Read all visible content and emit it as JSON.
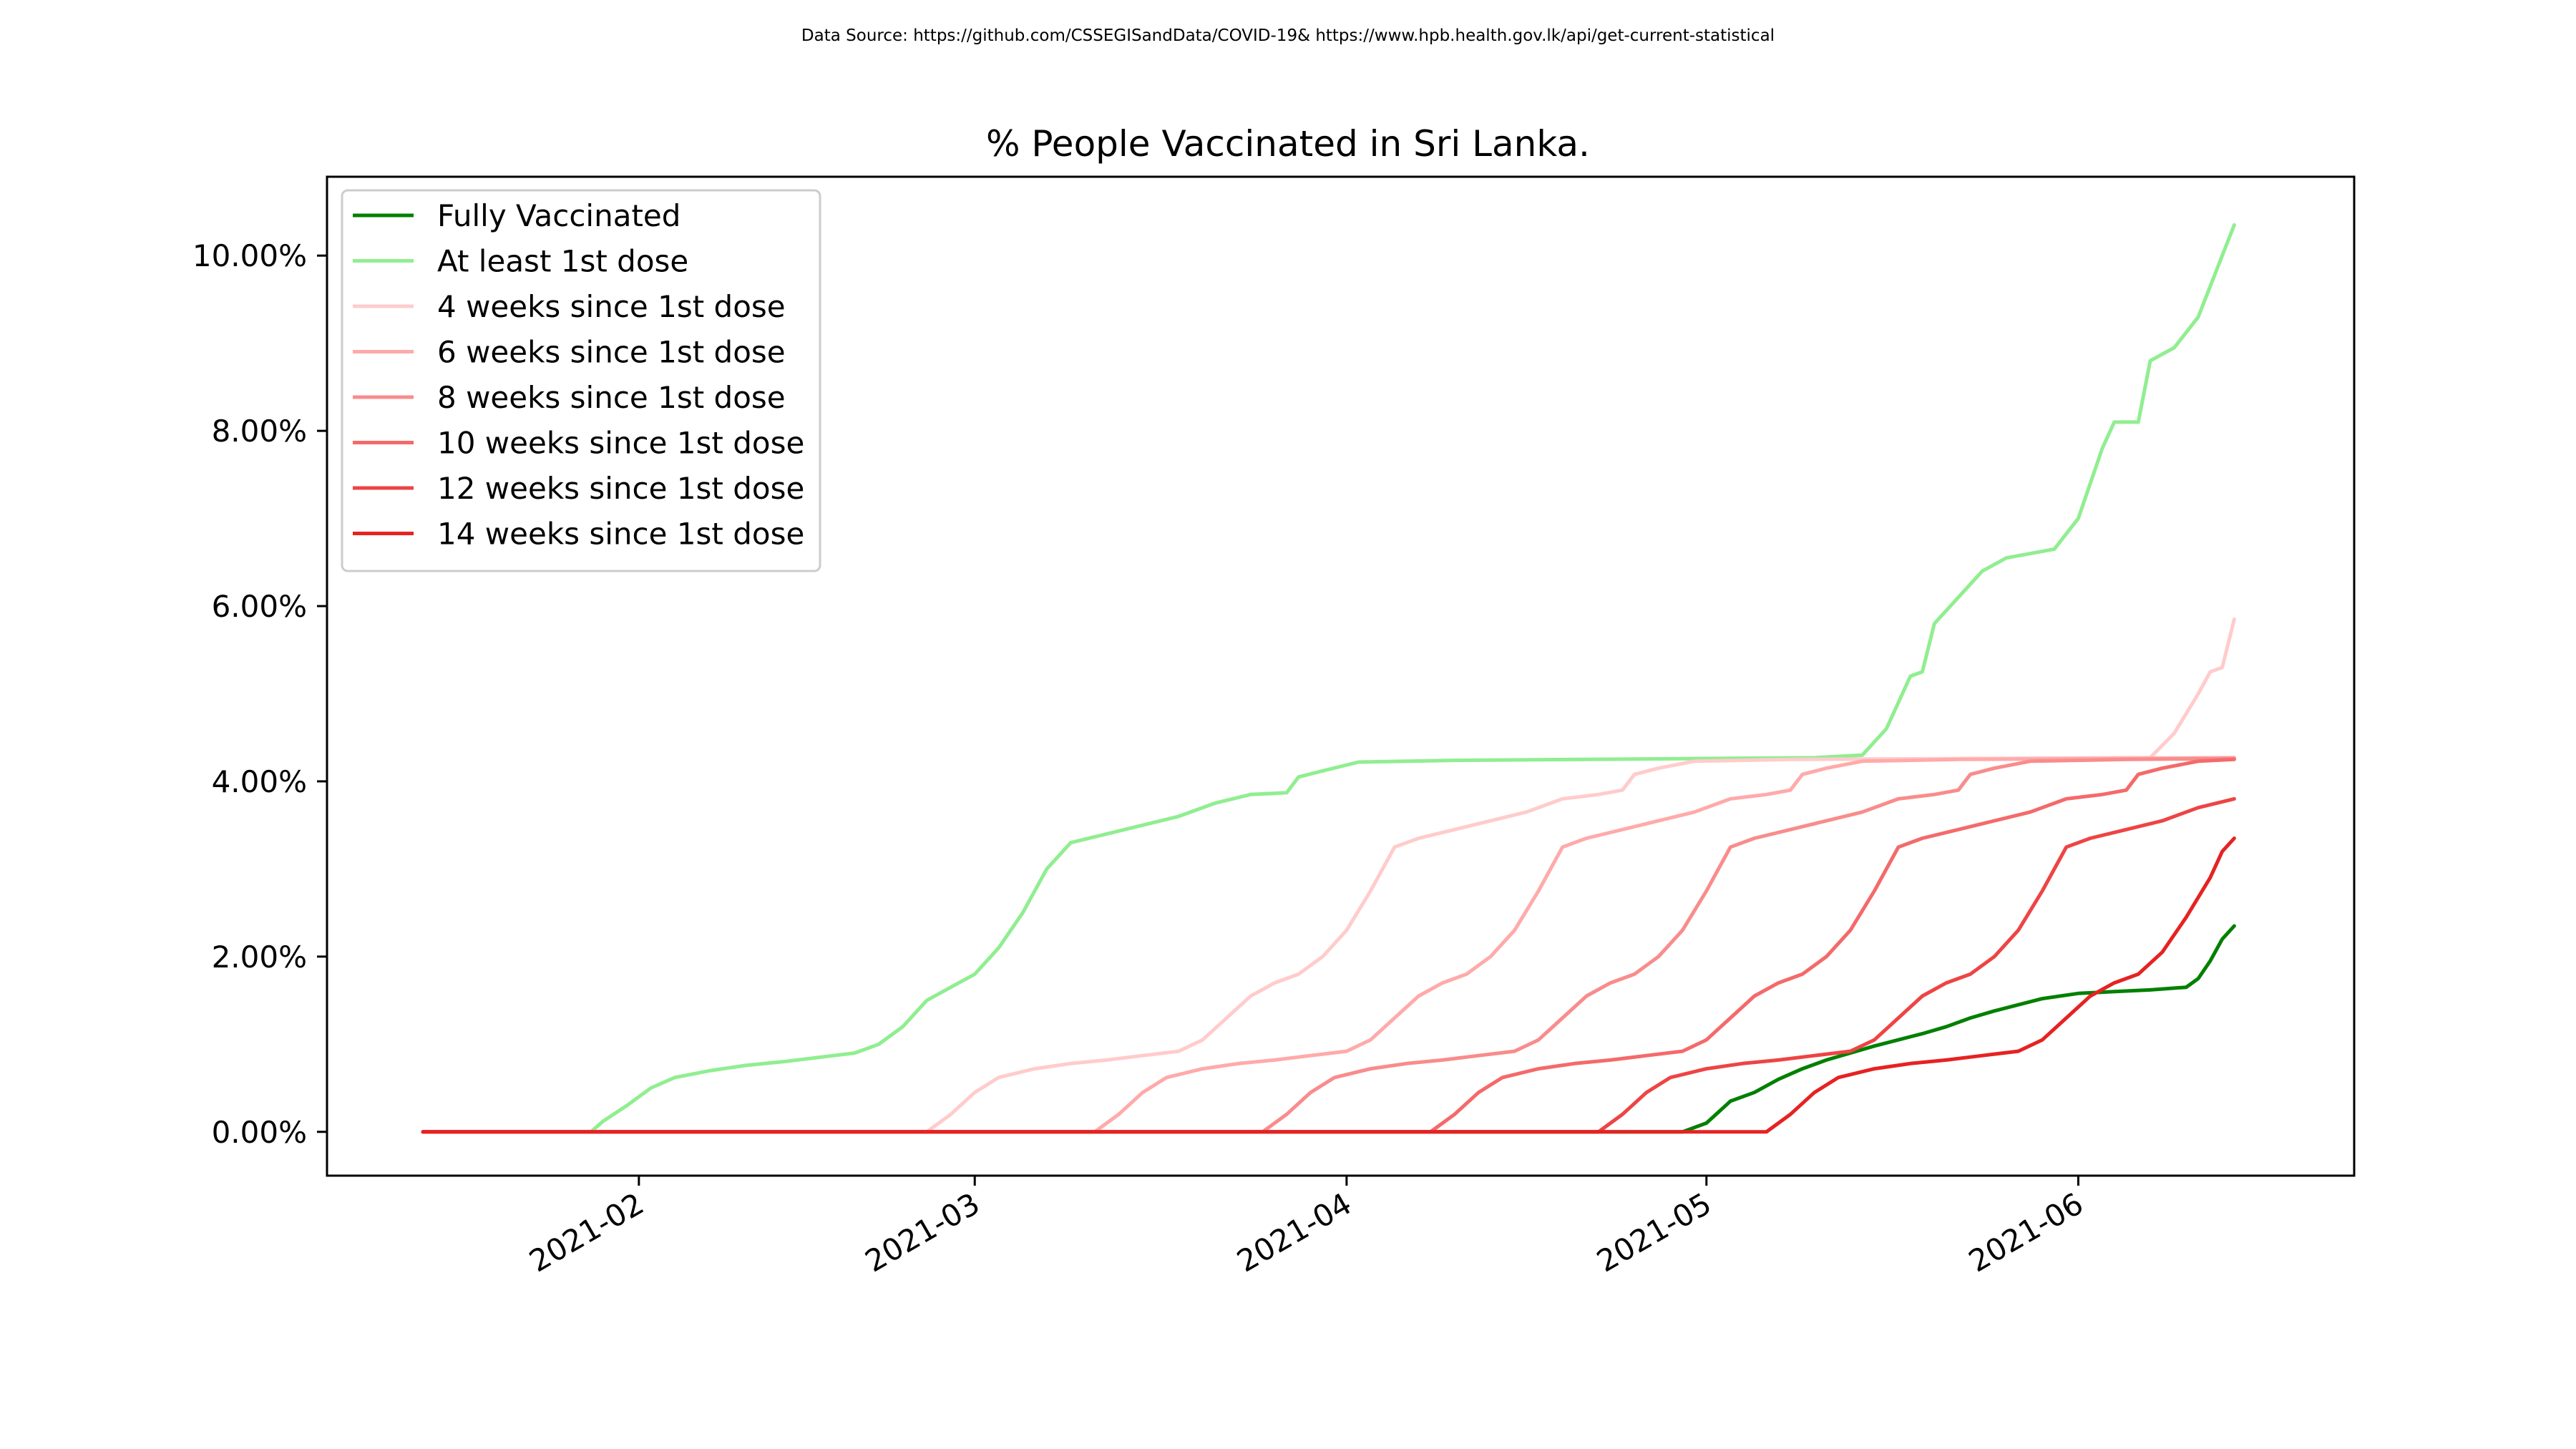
{
  "source_note": "Data Source: https://github.com/CSSEGISandData/COVID-19& https://www.hpb.health.gov.lk/api/get-current-statistical",
  "chart_data": {
    "type": "line",
    "title": "% People Vaccinated in Sri Lanka.",
    "xlabel": "",
    "ylabel": "",
    "x_range": [
      "2021-01-06",
      "2021-06-24"
    ],
    "y_range": [
      -0.5,
      10.9
    ],
    "x_ticks": [
      {
        "date": "2021-02-01",
        "label": "2021-02"
      },
      {
        "date": "2021-03-01",
        "label": "2021-03"
      },
      {
        "date": "2021-04-01",
        "label": "2021-04"
      },
      {
        "date": "2021-05-01",
        "label": "2021-05"
      },
      {
        "date": "2021-06-01",
        "label": "2021-06"
      }
    ],
    "y_ticks": [
      {
        "value": 0,
        "label": "0.00%"
      },
      {
        "value": 2,
        "label": "2.00%"
      },
      {
        "value": 4,
        "label": "4.00%"
      },
      {
        "value": 6,
        "label": "6.00%"
      },
      {
        "value": 8,
        "label": "8.00%"
      },
      {
        "value": 10,
        "label": "10.00%"
      }
    ],
    "legend_position": "top-left",
    "grid": false,
    "series": [
      {
        "name": "Fully Vaccinated",
        "color": "#008000",
        "points": [
          [
            "2021-01-14",
            0
          ],
          [
            "2021-04-29",
            0
          ],
          [
            "2021-05-01",
            0.1
          ],
          [
            "2021-05-03",
            0.35
          ],
          [
            "2021-05-05",
            0.45
          ],
          [
            "2021-05-07",
            0.6
          ],
          [
            "2021-05-09",
            0.72
          ],
          [
            "2021-05-11",
            0.82
          ],
          [
            "2021-05-13",
            0.9
          ],
          [
            "2021-05-15",
            0.98
          ],
          [
            "2021-05-17",
            1.05
          ],
          [
            "2021-05-19",
            1.12
          ],
          [
            "2021-05-21",
            1.2
          ],
          [
            "2021-05-23",
            1.3
          ],
          [
            "2021-05-25",
            1.38
          ],
          [
            "2021-05-27",
            1.45
          ],
          [
            "2021-05-29",
            1.52
          ],
          [
            "2021-06-01",
            1.58
          ],
          [
            "2021-06-04",
            1.6
          ],
          [
            "2021-06-07",
            1.62
          ],
          [
            "2021-06-10",
            1.65
          ],
          [
            "2021-06-11",
            1.75
          ],
          [
            "2021-06-12",
            1.95
          ],
          [
            "2021-06-13",
            2.2
          ],
          [
            "2021-06-14",
            2.35
          ]
        ]
      },
      {
        "name": "At least 1st dose",
        "color": "#90ee90",
        "points": [
          [
            "2021-01-14",
            0
          ],
          [
            "2021-01-28",
            0
          ],
          [
            "2021-01-29",
            0.12
          ],
          [
            "2021-01-31",
            0.3
          ],
          [
            "2021-02-02",
            0.5
          ],
          [
            "2021-02-04",
            0.62
          ],
          [
            "2021-02-07",
            0.7
          ],
          [
            "2021-02-10",
            0.76
          ],
          [
            "2021-02-13",
            0.8
          ],
          [
            "2021-02-16",
            0.85
          ],
          [
            "2021-02-19",
            0.9
          ],
          [
            "2021-02-21",
            1.0
          ],
          [
            "2021-02-23",
            1.2
          ],
          [
            "2021-02-25",
            1.5
          ],
          [
            "2021-02-27",
            1.65
          ],
          [
            "2021-03-01",
            1.8
          ],
          [
            "2021-03-03",
            2.1
          ],
          [
            "2021-03-05",
            2.5
          ],
          [
            "2021-03-07",
            3.0
          ],
          [
            "2021-03-09",
            3.3
          ],
          [
            "2021-03-12",
            3.4
          ],
          [
            "2021-03-15",
            3.5
          ],
          [
            "2021-03-18",
            3.6
          ],
          [
            "2021-03-21",
            3.75
          ],
          [
            "2021-03-24",
            3.85
          ],
          [
            "2021-03-27",
            3.87
          ],
          [
            "2021-03-28",
            4.05
          ],
          [
            "2021-03-30",
            4.12
          ],
          [
            "2021-04-02",
            4.22
          ],
          [
            "2021-04-10",
            4.24
          ],
          [
            "2021-05-10",
            4.27
          ],
          [
            "2021-05-14",
            4.3
          ],
          [
            "2021-05-16",
            4.6
          ],
          [
            "2021-05-18",
            5.2
          ],
          [
            "2021-05-19",
            5.25
          ],
          [
            "2021-05-20",
            5.8
          ],
          [
            "2021-05-22",
            6.1
          ],
          [
            "2021-05-24",
            6.4
          ],
          [
            "2021-05-26",
            6.55
          ],
          [
            "2021-05-28",
            6.6
          ],
          [
            "2021-05-30",
            6.65
          ],
          [
            "2021-06-01",
            7.0
          ],
          [
            "2021-06-03",
            7.8
          ],
          [
            "2021-06-04",
            8.1
          ],
          [
            "2021-06-06",
            8.1
          ],
          [
            "2021-06-07",
            8.8
          ],
          [
            "2021-06-09",
            8.95
          ],
          [
            "2021-06-11",
            9.3
          ],
          [
            "2021-06-13",
            10.0
          ],
          [
            "2021-06-14",
            10.35
          ]
        ]
      },
      {
        "name": "4 weeks since 1st dose",
        "color": "#ffcccb",
        "points": [
          [
            "2021-01-14",
            0
          ],
          [
            "2021-02-25",
            0
          ],
          [
            "2021-02-27",
            0.2
          ],
          [
            "2021-03-01",
            0.45
          ],
          [
            "2021-03-03",
            0.62
          ],
          [
            "2021-03-06",
            0.72
          ],
          [
            "2021-03-09",
            0.78
          ],
          [
            "2021-03-12",
            0.82
          ],
          [
            "2021-03-15",
            0.87
          ],
          [
            "2021-03-18",
            0.92
          ],
          [
            "2021-03-20",
            1.05
          ],
          [
            "2021-03-22",
            1.3
          ],
          [
            "2021-03-24",
            1.55
          ],
          [
            "2021-03-26",
            1.7
          ],
          [
            "2021-03-28",
            1.8
          ],
          [
            "2021-03-30",
            2.0
          ],
          [
            "2021-04-01",
            2.3
          ],
          [
            "2021-04-03",
            2.75
          ],
          [
            "2021-04-05",
            3.25
          ],
          [
            "2021-04-07",
            3.35
          ],
          [
            "2021-04-10",
            3.45
          ],
          [
            "2021-04-13",
            3.55
          ],
          [
            "2021-04-16",
            3.65
          ],
          [
            "2021-04-19",
            3.8
          ],
          [
            "2021-04-22",
            3.85
          ],
          [
            "2021-04-24",
            3.9
          ],
          [
            "2021-04-25",
            4.08
          ],
          [
            "2021-04-27",
            4.15
          ],
          [
            "2021-04-30",
            4.23
          ],
          [
            "2021-05-08",
            4.25
          ],
          [
            "2021-06-07",
            4.27
          ],
          [
            "2021-06-09",
            4.55
          ],
          [
            "2021-06-11",
            5.0
          ],
          [
            "2021-06-12",
            5.25
          ],
          [
            "2021-06-13",
            5.3
          ],
          [
            "2021-06-14",
            5.85
          ]
        ]
      },
      {
        "name": "6 weeks since 1st dose",
        "color": "#ffaaaa",
        "points": [
          [
            "2021-01-14",
            0
          ],
          [
            "2021-03-11",
            0
          ],
          [
            "2021-03-13",
            0.2
          ],
          [
            "2021-03-15",
            0.45
          ],
          [
            "2021-03-17",
            0.62
          ],
          [
            "2021-03-20",
            0.72
          ],
          [
            "2021-03-23",
            0.78
          ],
          [
            "2021-03-26",
            0.82
          ],
          [
            "2021-03-29",
            0.87
          ],
          [
            "2021-04-01",
            0.92
          ],
          [
            "2021-04-03",
            1.05
          ],
          [
            "2021-04-05",
            1.3
          ],
          [
            "2021-04-07",
            1.55
          ],
          [
            "2021-04-09",
            1.7
          ],
          [
            "2021-04-11",
            1.8
          ],
          [
            "2021-04-13",
            2.0
          ],
          [
            "2021-04-15",
            2.3
          ],
          [
            "2021-04-17",
            2.75
          ],
          [
            "2021-04-19",
            3.25
          ],
          [
            "2021-04-21",
            3.35
          ],
          [
            "2021-04-24",
            3.45
          ],
          [
            "2021-04-27",
            3.55
          ],
          [
            "2021-04-30",
            3.65
          ],
          [
            "2021-05-03",
            3.8
          ],
          [
            "2021-05-06",
            3.85
          ],
          [
            "2021-05-08",
            3.9
          ],
          [
            "2021-05-09",
            4.08
          ],
          [
            "2021-05-11",
            4.15
          ],
          [
            "2021-05-14",
            4.23
          ],
          [
            "2021-05-22",
            4.25
          ],
          [
            "2021-06-14",
            4.27
          ]
        ]
      },
      {
        "name": "8 weeks since 1st dose",
        "color": "#f98c8c",
        "points": [
          [
            "2021-01-14",
            0
          ],
          [
            "2021-03-25",
            0
          ],
          [
            "2021-03-27",
            0.2
          ],
          [
            "2021-03-29",
            0.45
          ],
          [
            "2021-03-31",
            0.62
          ],
          [
            "2021-04-03",
            0.72
          ],
          [
            "2021-04-06",
            0.78
          ],
          [
            "2021-04-09",
            0.82
          ],
          [
            "2021-04-12",
            0.87
          ],
          [
            "2021-04-15",
            0.92
          ],
          [
            "2021-04-17",
            1.05
          ],
          [
            "2021-04-19",
            1.3
          ],
          [
            "2021-04-21",
            1.55
          ],
          [
            "2021-04-23",
            1.7
          ],
          [
            "2021-04-25",
            1.8
          ],
          [
            "2021-04-27",
            2.0
          ],
          [
            "2021-04-29",
            2.3
          ],
          [
            "2021-05-01",
            2.75
          ],
          [
            "2021-05-03",
            3.25
          ],
          [
            "2021-05-05",
            3.35
          ],
          [
            "2021-05-08",
            3.45
          ],
          [
            "2021-05-11",
            3.55
          ],
          [
            "2021-05-14",
            3.65
          ],
          [
            "2021-05-17",
            3.8
          ],
          [
            "2021-05-20",
            3.85
          ],
          [
            "2021-05-22",
            3.9
          ],
          [
            "2021-05-23",
            4.08
          ],
          [
            "2021-05-25",
            4.15
          ],
          [
            "2021-05-28",
            4.23
          ],
          [
            "2021-06-05",
            4.25
          ],
          [
            "2021-06-14",
            4.26
          ]
        ]
      },
      {
        "name": "10 weeks since 1st dose",
        "color": "#f46a6a",
        "points": [
          [
            "2021-01-14",
            0
          ],
          [
            "2021-04-08",
            0
          ],
          [
            "2021-04-10",
            0.2
          ],
          [
            "2021-04-12",
            0.45
          ],
          [
            "2021-04-14",
            0.62
          ],
          [
            "2021-04-17",
            0.72
          ],
          [
            "2021-04-20",
            0.78
          ],
          [
            "2021-04-23",
            0.82
          ],
          [
            "2021-04-26",
            0.87
          ],
          [
            "2021-04-29",
            0.92
          ],
          [
            "2021-05-01",
            1.05
          ],
          [
            "2021-05-03",
            1.3
          ],
          [
            "2021-05-05",
            1.55
          ],
          [
            "2021-05-07",
            1.7
          ],
          [
            "2021-05-09",
            1.8
          ],
          [
            "2021-05-11",
            2.0
          ],
          [
            "2021-05-13",
            2.3
          ],
          [
            "2021-05-15",
            2.75
          ],
          [
            "2021-05-17",
            3.25
          ],
          [
            "2021-05-19",
            3.35
          ],
          [
            "2021-05-22",
            3.45
          ],
          [
            "2021-05-25",
            3.55
          ],
          [
            "2021-05-28",
            3.65
          ],
          [
            "2021-05-31",
            3.8
          ],
          [
            "2021-06-03",
            3.85
          ],
          [
            "2021-06-05",
            3.9
          ],
          [
            "2021-06-06",
            4.08
          ],
          [
            "2021-06-08",
            4.15
          ],
          [
            "2021-06-11",
            4.23
          ],
          [
            "2021-06-14",
            4.25
          ]
        ]
      },
      {
        "name": "12 weeks since 1st dose",
        "color": "#ee4444",
        "points": [
          [
            "2021-01-14",
            0
          ],
          [
            "2021-04-22",
            0
          ],
          [
            "2021-04-24",
            0.2
          ],
          [
            "2021-04-26",
            0.45
          ],
          [
            "2021-04-28",
            0.62
          ],
          [
            "2021-05-01",
            0.72
          ],
          [
            "2021-05-04",
            0.78
          ],
          [
            "2021-05-07",
            0.82
          ],
          [
            "2021-05-10",
            0.87
          ],
          [
            "2021-05-13",
            0.92
          ],
          [
            "2021-05-15",
            1.05
          ],
          [
            "2021-05-17",
            1.3
          ],
          [
            "2021-05-19",
            1.55
          ],
          [
            "2021-05-21",
            1.7
          ],
          [
            "2021-05-23",
            1.8
          ],
          [
            "2021-05-25",
            2.0
          ],
          [
            "2021-05-27",
            2.3
          ],
          [
            "2021-05-29",
            2.75
          ],
          [
            "2021-05-31",
            3.25
          ],
          [
            "2021-06-02",
            3.35
          ],
          [
            "2021-06-05",
            3.45
          ],
          [
            "2021-06-08",
            3.55
          ],
          [
            "2021-06-11",
            3.7
          ],
          [
            "2021-06-14",
            3.8
          ]
        ]
      },
      {
        "name": "14 weeks since 1st dose",
        "color": "#e62222",
        "points": [
          [
            "2021-01-14",
            0
          ],
          [
            "2021-05-06",
            0
          ],
          [
            "2021-05-08",
            0.2
          ],
          [
            "2021-05-10",
            0.45
          ],
          [
            "2021-05-12",
            0.62
          ],
          [
            "2021-05-15",
            0.72
          ],
          [
            "2021-05-18",
            0.78
          ],
          [
            "2021-05-21",
            0.82
          ],
          [
            "2021-05-24",
            0.87
          ],
          [
            "2021-05-27",
            0.92
          ],
          [
            "2021-05-29",
            1.05
          ],
          [
            "2021-05-31",
            1.3
          ],
          [
            "2021-06-02",
            1.55
          ],
          [
            "2021-06-04",
            1.7
          ],
          [
            "2021-06-06",
            1.8
          ],
          [
            "2021-06-08",
            2.05
          ],
          [
            "2021-06-10",
            2.45
          ],
          [
            "2021-06-12",
            2.9
          ],
          [
            "2021-06-13",
            3.2
          ],
          [
            "2021-06-14",
            3.35
          ]
        ]
      }
    ]
  }
}
